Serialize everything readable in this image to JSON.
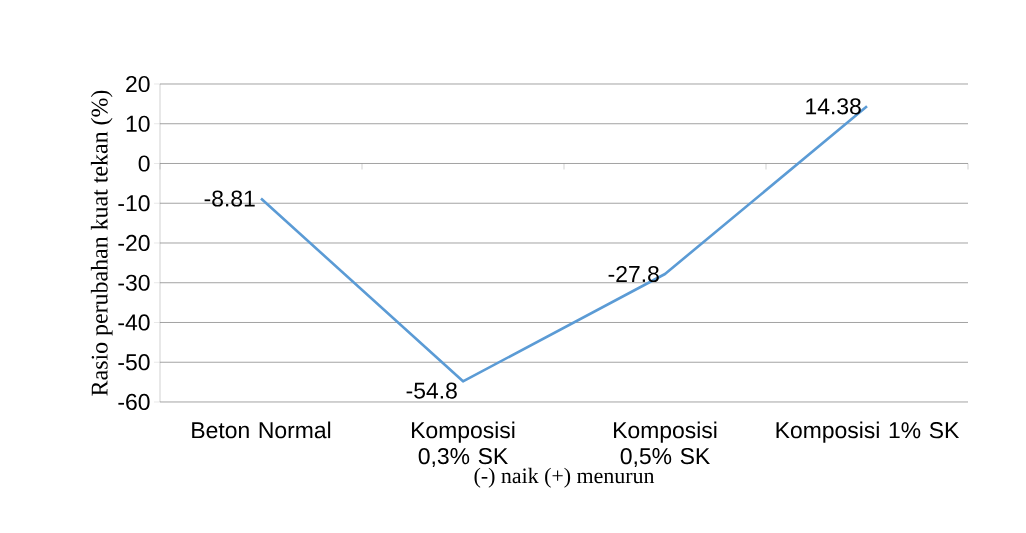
{
  "chart_data": {
    "type": "line",
    "xlabel": "(-) naik    (+) menurun",
    "ylabel": "Rasio perubahan kuat tekan (%)",
    "categories": [
      "Beton Normal",
      "Komposisi 0,3% SK",
      "Komposisi 0,5% SK",
      "Komposisi 1% SK"
    ],
    "values": [
      -8.81,
      -54.8,
      -27.8,
      14.38
    ],
    "color": "#5b9bd5",
    "ylim": [
      -60,
      20
    ],
    "yticks": [
      -60,
      -50,
      -40,
      -30,
      -20,
      -10,
      0,
      10,
      20
    ],
    "grid": "y",
    "data_labels": true,
    "marker": "none",
    "line_style": "solid"
  }
}
